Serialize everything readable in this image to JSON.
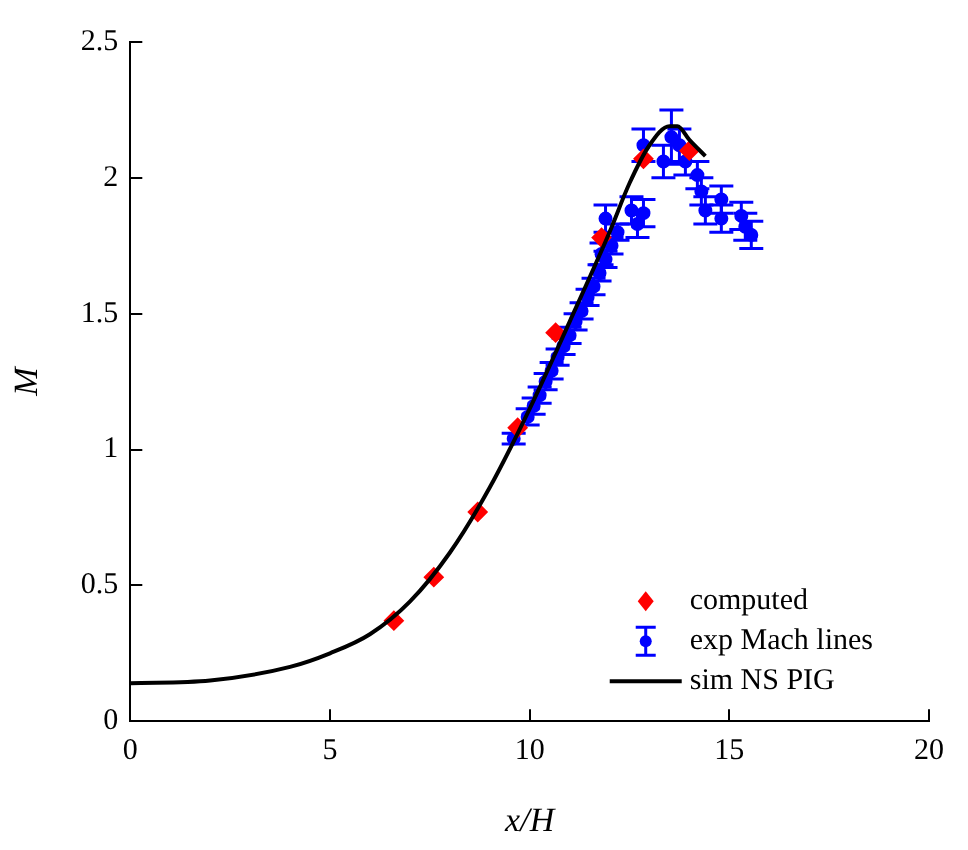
{
  "chart_data": {
    "type": "scatter",
    "xlabel": "x/H",
    "ylabel": "M",
    "xlim": [
      0,
      20
    ],
    "ylim": [
      0,
      2.5
    ],
    "xticks": [
      0,
      5,
      10,
      15,
      20
    ],
    "yticks": [
      0,
      0.5,
      1,
      1.5,
      2,
      2.5
    ],
    "grid": false,
    "legend": "bottom right",
    "series": [
      {
        "name": "computed",
        "type": "scatter",
        "color": "#ff0000",
        "marker": "diamond",
        "x": [
          6.6,
          7.6,
          8.7,
          9.7,
          10.65,
          11.8,
          12.85,
          14.0
        ],
        "values": [
          0.37,
          0.53,
          0.77,
          1.08,
          1.43,
          1.78,
          2.07,
          2.1
        ]
      },
      {
        "name": "exp Mach lines",
        "type": "scatter",
        "color": "#0000ff",
        "marker": "circle",
        "x": [
          9.6,
          9.8,
          9.95,
          10.1,
          10.25,
          10.4,
          10.55,
          10.7,
          10.85,
          11.0,
          11.15,
          11.3,
          11.45,
          11.6,
          11.75,
          11.9,
          12.05,
          12.2,
          11.8,
          11.9,
          12.55,
          12.7,
          12.85,
          12.85,
          13.35,
          13.55,
          13.75,
          13.9,
          14.2,
          14.3,
          14.4,
          14.8,
          14.8,
          15.3,
          15.4,
          15.55
        ],
        "values": [
          1.04,
          null,
          1.12,
          1.16,
          1.2,
          1.25,
          1.29,
          1.34,
          1.38,
          1.42,
          1.47,
          1.51,
          1.56,
          1.6,
          1.65,
          1.7,
          1.75,
          1.8,
          1.72,
          1.85,
          1.88,
          1.83,
          1.87,
          2.12,
          2.06,
          2.15,
          2.12,
          2.06,
          2.01,
          1.95,
          1.88,
          1.92,
          1.85,
          1.86,
          1.82,
          1.79
        ],
        "errors": [
          0.02,
          null,
          0.03,
          0.03,
          0.03,
          0.03,
          0.03,
          0.03,
          0.03,
          0.03,
          0.03,
          0.03,
          0.03,
          0.03,
          0.03,
          0.03,
          0.03,
          0.03,
          0.04,
          0.05,
          0.05,
          0.05,
          0.05,
          0.06,
          0.06,
          0.1,
          0.06,
          0.05,
          0.05,
          0.05,
          0.05,
          0.05,
          0.05,
          0.05,
          0.05,
          0.05
        ]
      },
      {
        "name": "sim NS PIG",
        "type": "line",
        "color": "#000000",
        "marker": "none",
        "x": [
          0,
          2,
          4,
          5,
          6,
          7,
          8,
          9,
          10,
          11,
          12,
          12.5,
          13,
          13.5,
          13.7,
          14,
          14.4
        ],
        "values": [
          0.14,
          0.15,
          0.2,
          0.25,
          0.32,
          0.44,
          0.62,
          0.86,
          1.15,
          1.47,
          1.8,
          1.98,
          2.12,
          2.19,
          2.19,
          2.14,
          2.08
        ]
      }
    ]
  }
}
